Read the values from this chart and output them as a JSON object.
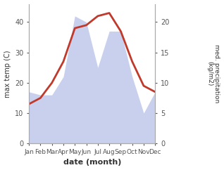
{
  "months": [
    "Jan",
    "Feb",
    "Mar",
    "Apr",
    "May",
    "Jun",
    "Jul",
    "Aug",
    "Sep",
    "Oct",
    "Nov",
    "Dec"
  ],
  "temperature": [
    13,
    15,
    20,
    27,
    38,
    39,
    42,
    43,
    37,
    27,
    19,
    17
  ],
  "precipitation": [
    17,
    16,
    16,
    22,
    42,
    40,
    25,
    37,
    37,
    22,
    10,
    17
  ],
  "temp_color": "#c0392b",
  "precip_fill_color": "#c8d0ee",
  "precip_edge_color": "#b0b8e0",
  "ylabel_left": "max temp (C)",
  "ylabel_right": "med. precipitation\n(kg/m2)",
  "xlabel": "date (month)",
  "ylim_left": [
    0,
    46
  ],
  "ylim_right": [
    0,
    23
  ],
  "yticks_left": [
    0,
    10,
    20,
    30,
    40
  ],
  "yticks_right": [
    0,
    5,
    10,
    15,
    20
  ],
  "bg_color": "#ffffff",
  "figsize": [
    3.18,
    2.42
  ],
  "dpi": 100
}
